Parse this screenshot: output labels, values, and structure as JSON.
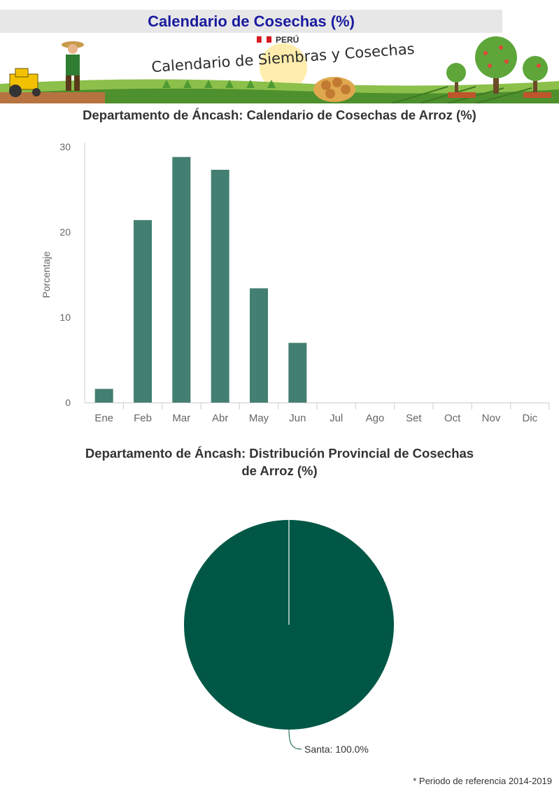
{
  "header": {
    "title": "Calendario de  Cosechas (%)"
  },
  "banner": {
    "country": "PERÚ",
    "title": "Calendario de Siembras y Cosechas",
    "colors": {
      "sky": "#ffffff",
      "field_dark": "#4e8f2e",
      "field_light": "#8cc04b",
      "soil": "#b6733f",
      "tractor": "#f2c200",
      "tree": "#5ea63a",
      "fruit": "#e0473a"
    }
  },
  "chart_data": [
    {
      "type": "bar",
      "title": "Departamento de Áncash: Calendario de Cosechas de Arroz (%)",
      "xlabel": "",
      "ylabel": "Porcentaje",
      "categories": [
        "Ene",
        "Feb",
        "Mar",
        "Abr",
        "May",
        "Jun",
        "Jul",
        "Ago",
        "Set",
        "Oct",
        "Nov",
        "Dic"
      ],
      "values": [
        1.6,
        21.4,
        28.8,
        27.3,
        13.4,
        7.0,
        0,
        0,
        0,
        0,
        0,
        0
      ],
      "ylim": [
        0,
        30
      ],
      "yticks": [
        "0",
        "10",
        "20",
        "30"
      ],
      "grid": false,
      "color": "#437f72"
    },
    {
      "type": "pie",
      "title_lines": [
        "Departamento de Áncash: Distribución Provincial de Cosechas",
        "de Arroz (%)"
      ],
      "slices": [
        {
          "label": "Santa: 100.0%",
          "name": "Santa",
          "value": 100.0
        }
      ],
      "color": "#005745"
    }
  ],
  "footnote": "* Periodo de referencia 2014-2019"
}
